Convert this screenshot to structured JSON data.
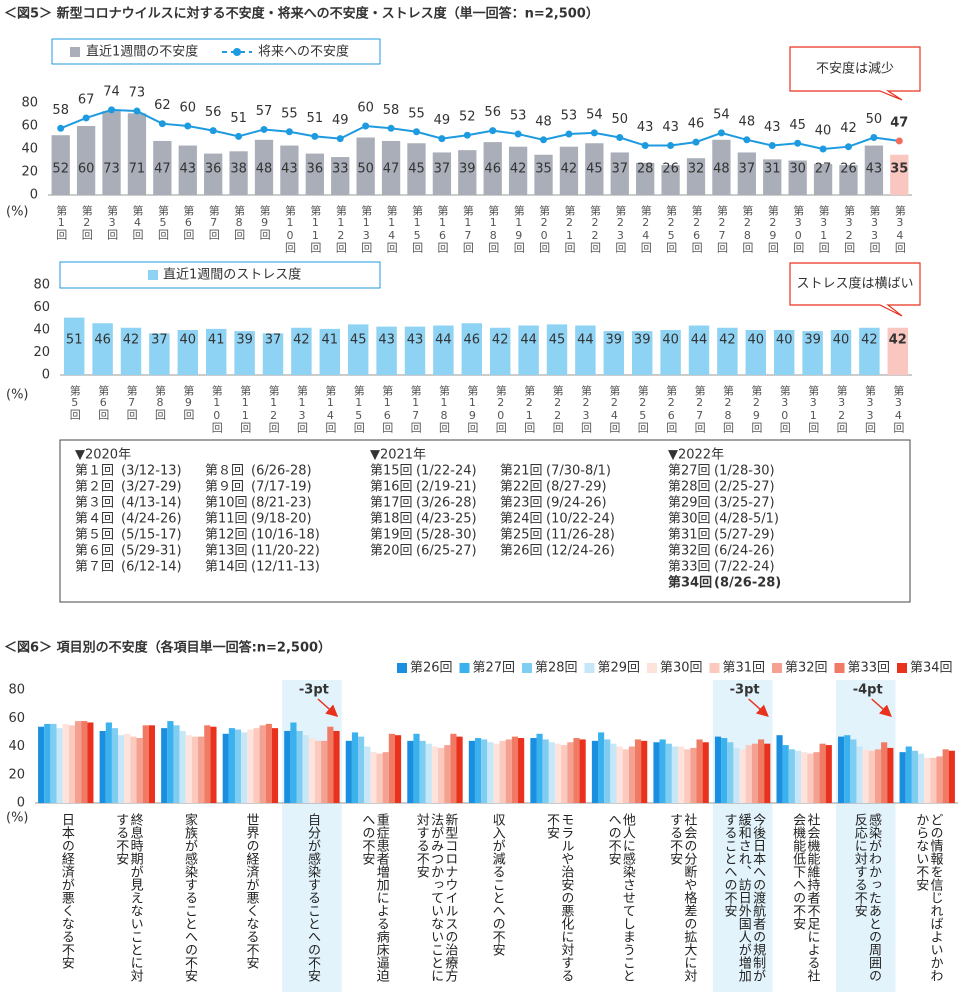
{
  "chart_data": [
    {
      "type": "combo",
      "title": "＜図5＞ 新型コロナウイルスに対する不安度・将来への不安度・ストレス度（単一回答：n=2,500）",
      "unit_label": "(%)",
      "categories": [
        "第1回",
        "第2回",
        "第3回",
        "第4回",
        "第5回",
        "第6回",
        "第7回",
        "第8回",
        "第9回",
        "第10回",
        "第11回",
        "第12回",
        "第13回",
        "第14回",
        "第15回",
        "第16回",
        "第17回",
        "第18回",
        "第19回",
        "第20回",
        "第21回",
        "第22回",
        "第23回",
        "第24回",
        "第25回",
        "第26回",
        "第27回",
        "第28回",
        "第29回",
        "第30回",
        "第31回",
        "第32回",
        "第33回",
        "第34回"
      ],
      "series": [
        {
          "name": "直近1週間の不安度",
          "type": "bar",
          "color": "#a9aeb8",
          "colors": [
            "#a9aeb8",
            "#a9aeb8",
            "#a9aeb8",
            "#a9aeb8",
            "#a9aeb8",
            "#a9aeb8",
            "#a9aeb8",
            "#a9aeb8",
            "#a9aeb8",
            "#a9aeb8",
            "#a9aeb8",
            "#a9aeb8",
            "#a9aeb8",
            "#a9aeb8",
            "#a9aeb8",
            "#a9aeb8",
            "#a9aeb8",
            "#a9aeb8",
            "#a9aeb8",
            "#a9aeb8",
            "#a9aeb8",
            "#a9aeb8",
            "#a9aeb8",
            "#a9aeb8",
            "#a9aeb8",
            "#a9aeb8",
            "#a9aeb8",
            "#a9aeb8",
            "#a9aeb8",
            "#a9aeb8",
            "#a9aeb8",
            "#a9aeb8",
            "#a9aeb8",
            "#f9c6c0"
          ],
          "values": [
            52,
            60,
            73,
            71,
            47,
            43,
            36,
            38,
            48,
            43,
            36,
            33,
            50,
            47,
            45,
            37,
            39,
            46,
            42,
            35,
            42,
            45,
            37,
            28,
            26,
            32,
            48,
            37,
            31,
            30,
            27,
            26,
            43,
            35
          ]
        },
        {
          "name": "将来への不安度",
          "type": "line",
          "color": "#1e9be0",
          "colors": [
            "#1e9be0",
            "#1e9be0",
            "#1e9be0",
            "#1e9be0",
            "#1e9be0",
            "#1e9be0",
            "#1e9be0",
            "#1e9be0",
            "#1e9be0",
            "#1e9be0",
            "#1e9be0",
            "#1e9be0",
            "#1e9be0",
            "#1e9be0",
            "#1e9be0",
            "#1e9be0",
            "#1e9be0",
            "#1e9be0",
            "#1e9be0",
            "#1e9be0",
            "#1e9be0",
            "#1e9be0",
            "#1e9be0",
            "#1e9be0",
            "#1e9be0",
            "#1e9be0",
            "#1e9be0",
            "#1e9be0",
            "#1e9be0",
            "#1e9be0",
            "#1e9be0",
            "#1e9be0",
            "#1e9be0",
            "#f26b5b"
          ],
          "values": [
            58,
            67,
            74,
            73,
            62,
            60,
            56,
            51,
            57,
            55,
            51,
            49,
            60,
            58,
            55,
            49,
            52,
            56,
            53,
            48,
            53,
            54,
            50,
            43,
            43,
            46,
            54,
            48,
            43,
            45,
            40,
            42,
            50,
            47
          ]
        }
      ],
      "ylim": [
        0,
        80
      ],
      "yticks": [
        0,
        20,
        40,
        60,
        80
      ],
      "callout": "不安度は減少"
    },
    {
      "type": "bar",
      "unit_label": "(%)",
      "categories": [
        "第5回",
        "第6回",
        "第7回",
        "第8回",
        "第9回",
        "第10回",
        "第11回",
        "第12回",
        "第13回",
        "第14回",
        "第15回",
        "第16回",
        "第17回",
        "第18回",
        "第19回",
        "第20回",
        "第21回",
        "第22回",
        "第23回",
        "第24回",
        "第25回",
        "第26回",
        "第27回",
        "第28回",
        "第29回",
        "第30回",
        "第31回",
        "第32回",
        "第33回",
        "第34回"
      ],
      "series": [
        {
          "name": "直近1週間のストレス度",
          "color": "#8fd3f4",
          "colors": [
            "#8fd3f4",
            "#8fd3f4",
            "#8fd3f4",
            "#8fd3f4",
            "#8fd3f4",
            "#8fd3f4",
            "#8fd3f4",
            "#8fd3f4",
            "#8fd3f4",
            "#8fd3f4",
            "#8fd3f4",
            "#8fd3f4",
            "#8fd3f4",
            "#8fd3f4",
            "#8fd3f4",
            "#8fd3f4",
            "#8fd3f4",
            "#8fd3f4",
            "#8fd3f4",
            "#8fd3f4",
            "#8fd3f4",
            "#8fd3f4",
            "#8fd3f4",
            "#8fd3f4",
            "#8fd3f4",
            "#8fd3f4",
            "#8fd3f4",
            "#8fd3f4",
            "#8fd3f4",
            "#f9c6c0"
          ],
          "values": [
            51,
            46,
            42,
            37,
            40,
            41,
            39,
            37,
            42,
            41,
            45,
            43,
            43,
            44,
            46,
            42,
            44,
            45,
            44,
            39,
            39,
            40,
            44,
            42,
            40,
            40,
            39,
            40,
            42,
            42
          ]
        }
      ],
      "ylim": [
        0,
        80
      ],
      "yticks": [
        0,
        20,
        40,
        60,
        80
      ],
      "callout": "ストレス度は横ばい"
    },
    {
      "type": "groupedbar",
      "title": "＜図6＞ 項目別の不安度（各項目単一回答:n=2,500）",
      "unit_label": "(%)",
      "categories": [
        "日本の経済が悪くなる不安",
        "終息時期が見えないことに対する不安",
        "家族が感染することへの不安",
        "世界の経済が悪くなる不安",
        "自分が感染することへの不安",
        "重症患者増加による病床逼迫への不安",
        "新型コロナウイルスの治療方法がみつかっていないことに対する不安",
        "収入が減ることへの不安",
        "モラルや治安の悪化に対する不安",
        "他人に感染させてしまうことへの不安",
        "社会の分断や格差の拡大に対する不安",
        "今後日本への渡航者の規制が緩和され、訪日外国人が増加することへの不安",
        "社会機能維持者不足による社会機能低下への不安",
        "感染がわかったあとの周囲の反応に対する不安",
        "どの情報を信じればよいかわからない不安"
      ],
      "series": [
        {
          "name": "第26回",
          "color": "#1a8fe0",
          "values": [
            54,
            51,
            53,
            49,
            51,
            44,
            44,
            44,
            46,
            44,
            43,
            47,
            48,
            47,
            36
          ]
        },
        {
          "name": "第27回",
          "color": "#3bb2ee",
          "values": [
            56,
            57,
            58,
            53,
            57,
            50,
            49,
            46,
            49,
            50,
            45,
            46,
            41,
            48,
            40
          ]
        },
        {
          "name": "第28回",
          "color": "#80cdf2",
          "values": [
            56,
            53,
            55,
            52,
            51,
            47,
            44,
            45,
            45,
            45,
            42,
            43,
            38,
            45,
            37
          ]
        },
        {
          "name": "第29回",
          "color": "#c6e7f7",
          "values": [
            53,
            48,
            51,
            50,
            48,
            40,
            42,
            43,
            43,
            42,
            40,
            39,
            37,
            40,
            35
          ]
        },
        {
          "name": "第30回",
          "color": "#fde3dc",
          "values": [
            56,
            49,
            48,
            52,
            46,
            36,
            40,
            42,
            42,
            40,
            40,
            38,
            36,
            38,
            32
          ]
        },
        {
          "name": "第31回",
          "color": "#fbc9bd",
          "values": [
            55,
            47,
            47,
            53,
            44,
            35,
            39,
            44,
            41,
            38,
            38,
            41,
            35,
            37,
            32
          ]
        },
        {
          "name": "第32回",
          "color": "#f5a191",
          "values": [
            58,
            46,
            47,
            55,
            44,
            36,
            41,
            45,
            43,
            40,
            39,
            42,
            36,
            38,
            33
          ]
        },
        {
          "name": "第33回",
          "color": "#f07a63",
          "values": [
            58,
            55,
            55,
            56,
            54,
            49,
            49,
            47,
            46,
            45,
            45,
            45,
            42,
            43,
            38
          ]
        },
        {
          "name": "第34回",
          "color": "#e8321e",
          "values": [
            57,
            55,
            54,
            53,
            51,
            48,
            47,
            46,
            45,
            44,
            43,
            42,
            41,
            39,
            37
          ]
        }
      ],
      "ylim": [
        0,
        80
      ],
      "yticks": [
        0,
        20,
        40,
        60,
        80
      ],
      "annotations": [
        "-3pt",
        "-3pt",
        "-4pt"
      ]
    }
  ],
  "schedule": [
    {
      "year": "▼2020年",
      "entries": [
        [
          "第１回",
          "(3/12-13)"
        ],
        [
          "第２回",
          "(3/27-29)"
        ],
        [
          "第３回",
          "(4/13-14)"
        ],
        [
          "第４回",
          "(4/24-26)"
        ],
        [
          "第５回",
          "(5/15-17)"
        ],
        [
          "第６回",
          "(5/29-31)"
        ],
        [
          "第７回",
          "(6/12-14)"
        ],
        [
          "第８回",
          "(6/26-28)"
        ],
        [
          "第９回",
          "(7/17-19)"
        ],
        [
          "第10回",
          "(8/21-23)"
        ],
        [
          "第11回",
          "(9/18-20)"
        ],
        [
          "第12回",
          "(10/16-18)"
        ],
        [
          "第13回",
          "(11/20-22)"
        ],
        [
          "第14回",
          "(12/11-13)"
        ]
      ]
    },
    {
      "year": "▼2021年",
      "entries": [
        [
          "第15回",
          "(1/22-24)"
        ],
        [
          "第16回",
          "(2/19-21)"
        ],
        [
          "第17回",
          "(3/26-28)"
        ],
        [
          "第18回",
          "(4/23-25)"
        ],
        [
          "第19回",
          "(5/28-30)"
        ],
        [
          "第20回",
          "(6/25-27)"
        ],
        [
          "第21回",
          "(7/30-8/1)"
        ],
        [
          "第22回",
          "(8/27-29)"
        ],
        [
          "第23回",
          "(9/24-26)"
        ],
        [
          "第24回",
          "(10/22-24)"
        ],
        [
          "第25回",
          "(11/26-28)"
        ],
        [
          "第26回",
          "(12/24-26)"
        ]
      ]
    },
    {
      "year": "▼2022年",
      "entries": [
        [
          "第27回",
          "(1/28-30)"
        ],
        [
          "第28回",
          "(2/25-27)"
        ],
        [
          "第29回",
          "(3/25-27)"
        ],
        [
          "第30回",
          "(4/28-5/1)"
        ],
        [
          "第31回",
          "(5/27-29)"
        ],
        [
          "第32回",
          "(6/24-26)"
        ],
        [
          "第33回",
          "(7/22-24)"
        ],
        [
          "第34回",
          "(8/26-28)"
        ]
      ]
    }
  ]
}
